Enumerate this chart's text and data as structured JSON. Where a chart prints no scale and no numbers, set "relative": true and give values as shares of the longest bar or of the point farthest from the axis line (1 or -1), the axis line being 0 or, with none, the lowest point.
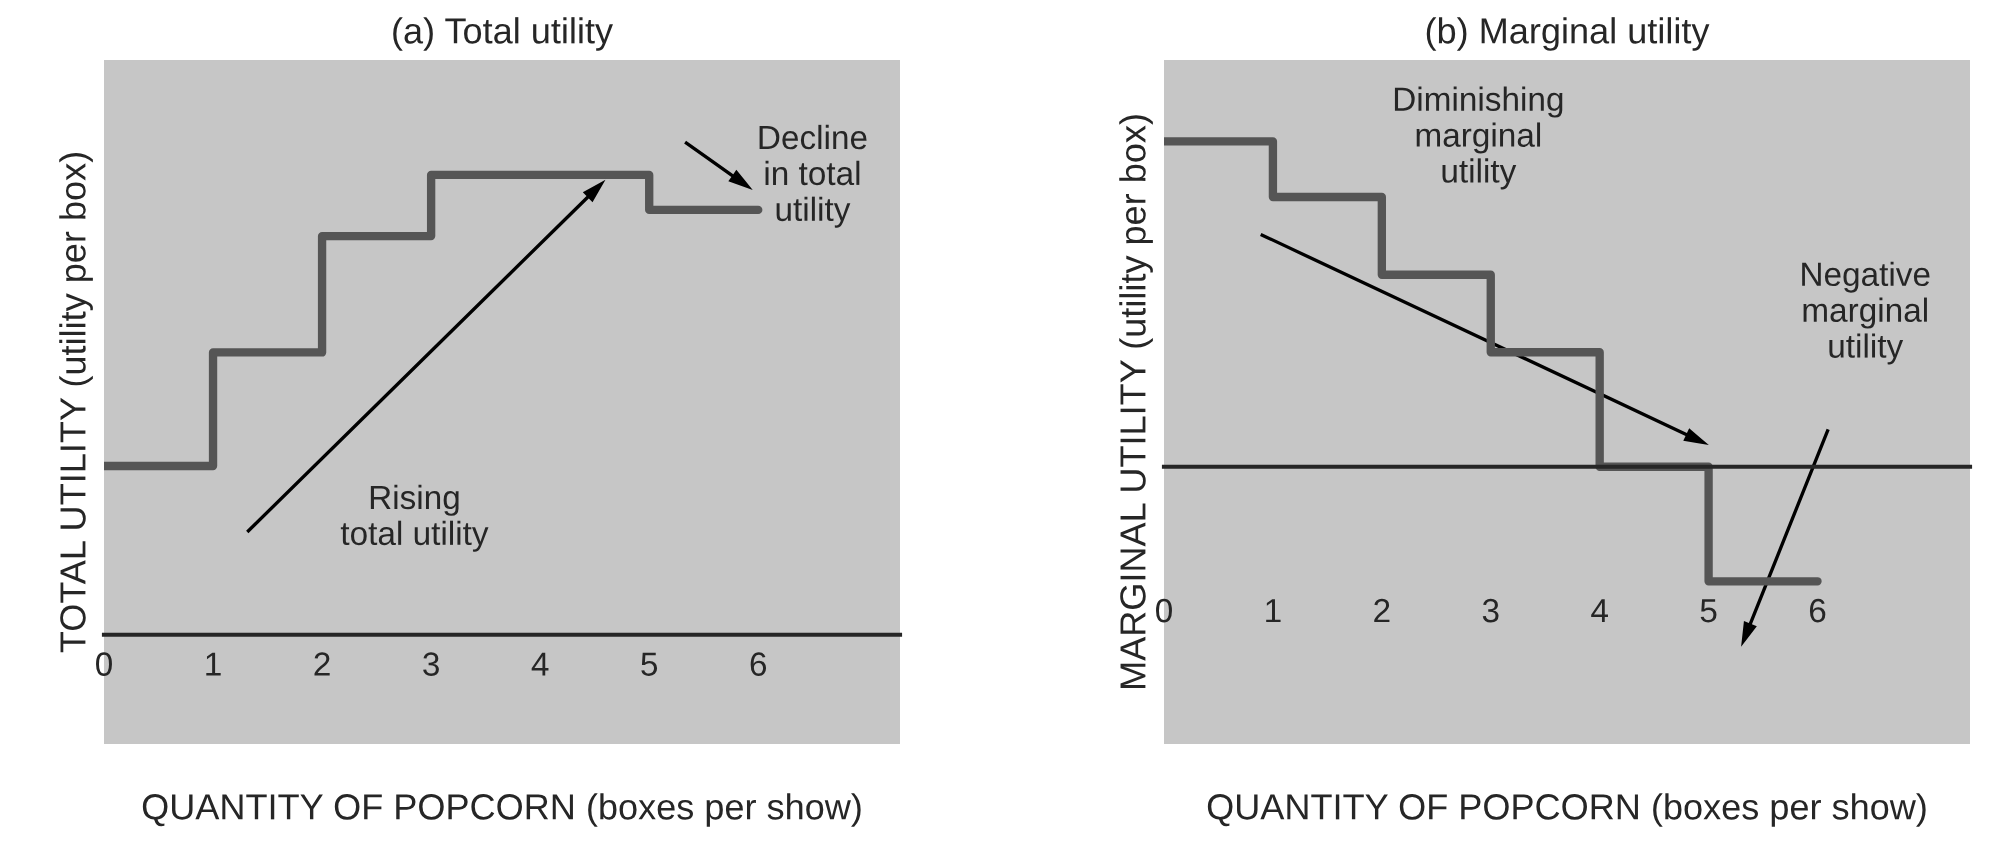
{
  "chart_data": [
    {
      "type": "step",
      "title": "(a) Total utility",
      "xlabel": "QUANTITY OF POPCORN (boxes per show)",
      "ylabel": "TOTAL UTILITY (utility per box)",
      "relative": true,
      "color": "#555555",
      "x": [
        0,
        1,
        2,
        3,
        4,
        5,
        6
      ],
      "values": [
        0.367,
        0.614,
        0.867,
        1,
        1,
        0.924,
        0.924
      ],
      "xlim": [
        0,
        7.3
      ],
      "xticks": [
        0,
        1,
        2,
        3,
        4,
        5,
        6
      ],
      "annotations": [
        "Rising\ntotal utility",
        "Decline\nin total\nutility"
      ]
    },
    {
      "type": "step",
      "title": "(b) Marginal utility",
      "xlabel": "QUANTITY OF POPCORN (boxes per show)",
      "ylabel": "MARGINAL UTILITY (utility per box)",
      "relative": true,
      "color": "#555555",
      "x": [
        0,
        1,
        2,
        3,
        4,
        5,
        6
      ],
      "values": [
        1,
        0.829,
        0.59,
        0.352,
        0,
        -0.352,
        -0.352
      ],
      "xlim": [
        0,
        7.4
      ],
      "xticks": [
        0,
        1,
        2,
        3,
        4,
        5,
        6
      ],
      "annotations": [
        "Diminishing\nmarginal\nutility",
        "Negative\nmarginal\nutility"
      ]
    }
  ]
}
